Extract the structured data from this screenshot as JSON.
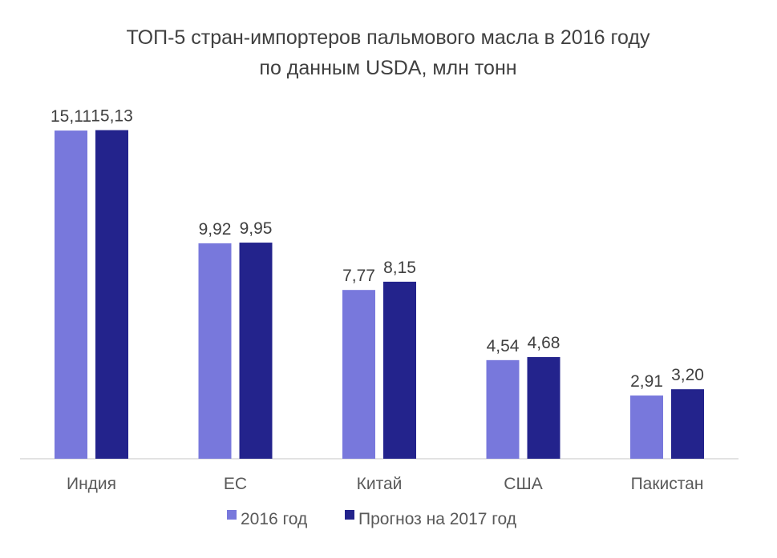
{
  "chart_data": {
    "type": "bar",
    "title": "ТОП-5 стран-импортеров пальмового масла в 2016 году",
    "subtitle": "по данным USDA, млн тонн",
    "categories": [
      "Индия",
      "ЕС",
      "Китай",
      "США",
      "Пакистан"
    ],
    "series": [
      {
        "name": "2016 год",
        "values": [
          15.11,
          9.92,
          7.77,
          4.54,
          2.91
        ],
        "labels": [
          "15,11",
          "9,92",
          "7,77",
          "4,54",
          "2,91"
        ],
        "color": "#7878dc"
      },
      {
        "name": "Прогноз на 2017 год",
        "values": [
          15.13,
          9.95,
          8.15,
          4.68,
          3.2
        ],
        "labels": [
          "15,13",
          "9,95",
          "8,15",
          "4,68",
          "3,20"
        ],
        "color": "#23238c"
      }
    ],
    "xlabel": "",
    "ylabel": "",
    "ylim": [
      0,
      16
    ],
    "grid": false,
    "legend": "bottom"
  }
}
